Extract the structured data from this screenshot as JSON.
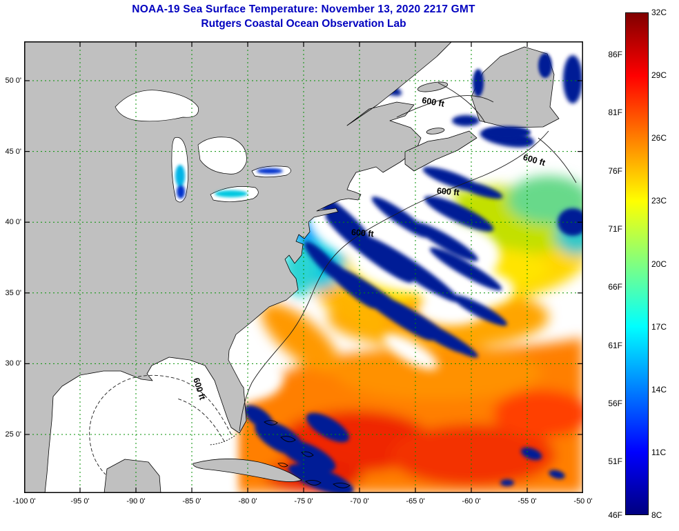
{
  "header": {
    "title": "NOAA-19 Sea Surface Temperature:  November 13, 2020 2217 GMT",
    "subtitle": "Rutgers Coastal Ocean Observation Lab",
    "title_color": "#0000bf"
  },
  "map": {
    "y_axis_labels": [
      "50 0'",
      "45 0'",
      "40 0'",
      "35 0'",
      "30 0'",
      "25 0'"
    ],
    "x_axis_labels": [
      "-100 0'",
      "-95 0'",
      "-90 0'",
      "-85 0'",
      "-80 0'",
      "-75 0'",
      "-70 0'",
      "-65 0'",
      "-60 0'",
      "-55 0'",
      "-50 0'"
    ],
    "contour_label": "600 ft",
    "land_color": "#c0c0c0",
    "grid_color": "#008f00",
    "cloud_color": "#ffffff",
    "cold_cloud_color": "#001e96"
  },
  "colorbar": {
    "left_labels": [
      "86F",
      "81F",
      "76F",
      "71F",
      "66F",
      "61F",
      "56F",
      "51F",
      "46F"
    ],
    "right_labels": [
      "32C",
      "29C",
      "26C",
      "23C",
      "20C",
      "17C",
      "14C",
      "11C",
      "8C"
    ],
    "gradient": [
      "#800000",
      "#ff0000",
      "#ffff00",
      "#80ff80",
      "#00ffff",
      "#0000ff",
      "#000080"
    ]
  }
}
